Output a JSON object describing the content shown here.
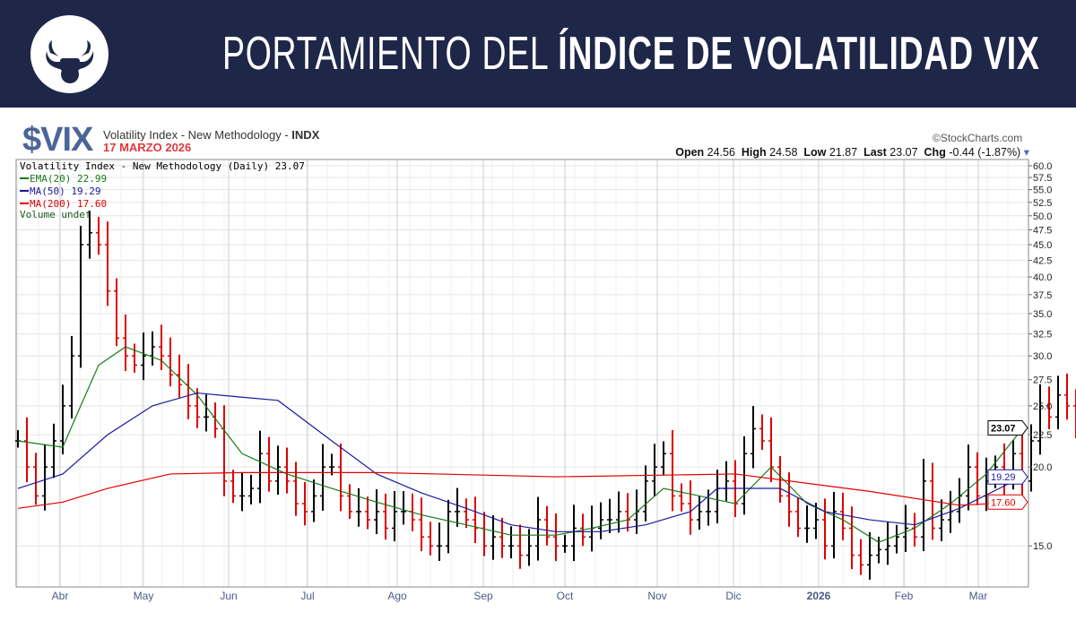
{
  "header": {
    "title_light": "PORTAMIENTO DEL ",
    "title_bold": "ÍNDICE DE VOLATILIDAD VIX"
  },
  "symbol": "$VIX",
  "description_prefix": "Volatility Index - New Methodology - ",
  "description_exchange": "INDX",
  "date": "17 MARZO 2026",
  "source": "©StockCharts.com",
  "ohlc": {
    "open_label": "Open",
    "open": "24.56",
    "high_label": "High",
    "high": "24.58",
    "low_label": "Low",
    "low": "21.87",
    "last_label": "Last",
    "last": "23.07",
    "chg_label": "Chg",
    "chg": "-0.44 (-1.87%)"
  },
  "legend": {
    "main": "Volatility Index - New Methodology (Daily) 23.07",
    "ema": "EMA(20) 22.99",
    "ma50": "MA(50) 19.29",
    "ma200": "MA(200) 17.60",
    "volume": "Volume undef"
  },
  "colors": {
    "header_bg": "#1f2749",
    "up": "#000000",
    "down": "#e00000",
    "ema": "#1a7a1a",
    "ma50": "#1a1a9a",
    "ma200": "#e00000"
  },
  "chart_data": {
    "type": "line",
    "scale": "log",
    "ylim": [
      13,
      60
    ],
    "y_ticks": [
      "60.0",
      "57.5",
      "55.0",
      "52.5",
      "50.0",
      "47.5",
      "45.0",
      "42.5",
      "40.0",
      "37.5",
      "35.0",
      "32.5",
      "30.0",
      "27.5",
      "25.0",
      "22.5",
      "20.0",
      "15.0"
    ],
    "x_labels": [
      "Abr",
      "May",
      "Jun",
      "Jul",
      "Ago",
      "Sep",
      "Oct",
      "Nov",
      "Dic",
      "2026",
      "Feb",
      "Mar"
    ],
    "x_label_index": [
      4.7,
      14,
      23.5,
      32.3,
      42.3,
      51.9,
      61,
      71.3,
      79.8,
      89.3,
      98.8,
      107.1
    ],
    "close": [
      22,
      20,
      18,
      20,
      22,
      25,
      30,
      45,
      47,
      45,
      38,
      32,
      30,
      29,
      30,
      31,
      30,
      28,
      27,
      25,
      24,
      24,
      23,
      19,
      18,
      18,
      18.5,
      21,
      19,
      20,
      19,
      17.5,
      17,
      18,
      20,
      20,
      18,
      17,
      17,
      16.5,
      17,
      16,
      17,
      17,
      16.5,
      15.5,
      15,
      15,
      17,
      17,
      16.5,
      16,
      15,
      15.5,
      15,
      15,
      14.5,
      15,
      16.5,
      15.5,
      15,
      15,
      16,
      15.5,
      16,
      16.5,
      16.5,
      17,
      16.5,
      17,
      19,
      20,
      21,
      18,
      17.5,
      16.5,
      17,
      17,
      18.5,
      19,
      17.5,
      21,
      23,
      22,
      20,
      18,
      17,
      16,
      16,
      16.5,
      15,
      17,
      16,
      14.5,
      14,
      14.5,
      14.8,
      15,
      15.5,
      16,
      15.5,
      19,
      16,
      16.5,
      17,
      18,
      20,
      18,
      19,
      20,
      19,
      21,
      19,
      22,
      25,
      24,
      26,
      25,
      23.07
    ],
    "series": [
      {
        "name": "EMA(20)",
        "last": "22.99",
        "idx": [
          0,
          5,
          7,
          9,
          12,
          16,
          20,
          25,
          30,
          35,
          40,
          45,
          50,
          55,
          60,
          64,
          68,
          72,
          76,
          80,
          84,
          88,
          92,
          96,
          100,
          104,
          108,
          112
        ],
        "values": [
          22,
          21.5,
          25,
          29,
          31,
          29.5,
          26,
          21,
          19.5,
          18.5,
          17.6,
          16.8,
          16.2,
          15.6,
          15.6,
          16,
          16.5,
          18.5,
          18,
          17.5,
          20,
          17.5,
          16.5,
          15.2,
          16,
          17.5,
          19.5,
          22.99
        ]
      },
      {
        "name": "MA(50)",
        "last": "19.29",
        "idx": [
          0,
          5,
          10,
          15,
          20,
          25,
          29,
          35,
          40,
          45,
          50,
          55,
          60,
          65,
          70,
          75,
          78,
          85,
          90,
          95,
          100,
          105,
          112
        ],
        "values": [
          18.5,
          19.5,
          22.5,
          25,
          26.2,
          25.8,
          25.5,
          22,
          19.5,
          18.2,
          17.2,
          16.2,
          15.8,
          15.8,
          16.2,
          17,
          18.5,
          18.5,
          17,
          16.5,
          16.2,
          17.2,
          19.29
        ]
      },
      {
        "name": "MA(200)",
        "last": "17.60",
        "idx": [
          0,
          5,
          10,
          17,
          25,
          40,
          60,
          80,
          95,
          105,
          112
        ],
        "values": [
          17.2,
          17.6,
          18.5,
          19.5,
          19.6,
          19.6,
          19.3,
          19.5,
          18.3,
          17.4,
          17.6
        ]
      }
    ]
  }
}
